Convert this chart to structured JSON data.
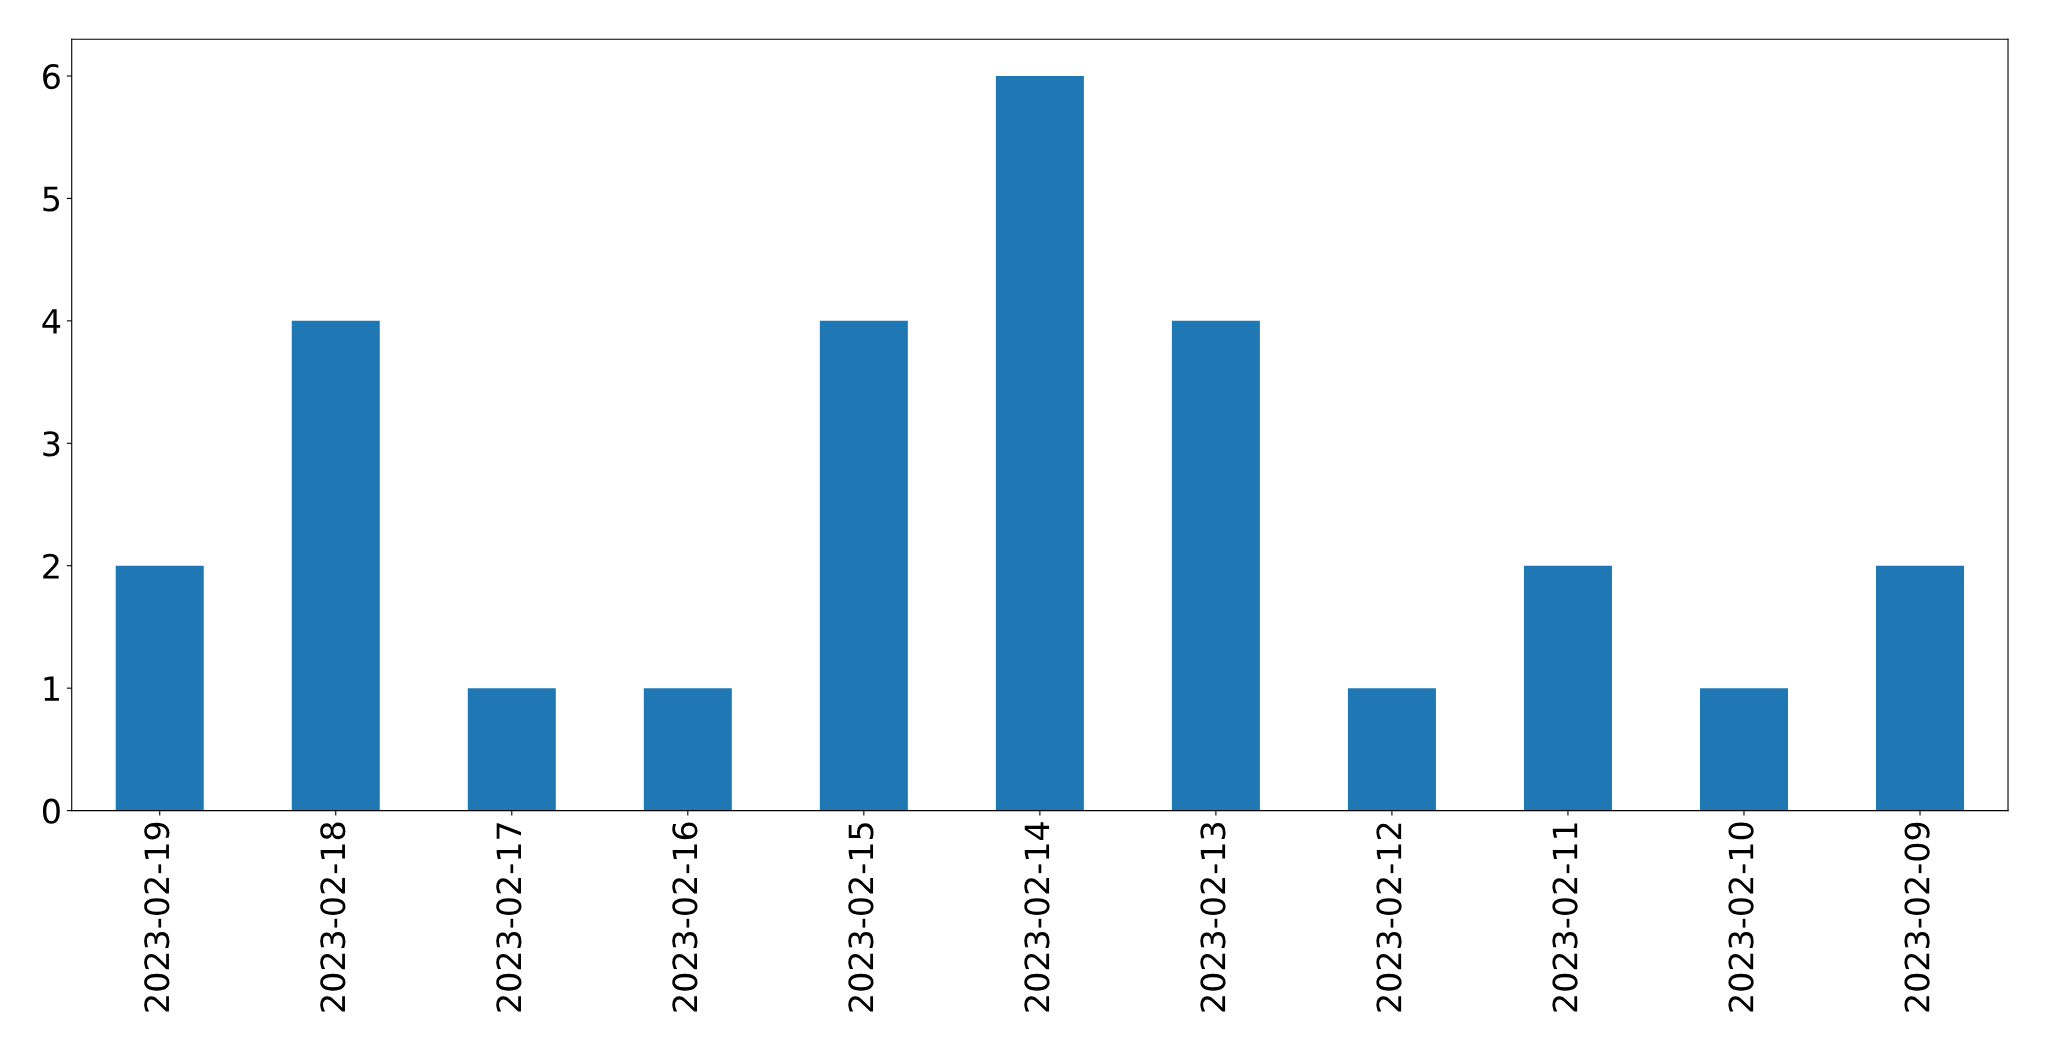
{
  "chart_data": {
    "type": "bar",
    "categories": [
      "2023-02-19",
      "2023-02-18",
      "2023-02-17",
      "2023-02-16",
      "2023-02-15",
      "2023-02-14",
      "2023-02-13",
      "2023-02-12",
      "2023-02-11",
      "2023-02-10",
      "2023-02-09"
    ],
    "values": [
      2,
      4,
      1,
      1,
      4,
      6,
      4,
      1,
      2,
      1,
      2
    ],
    "color": "#1f77b4",
    "ylim": [
      0,
      6.3
    ],
    "yticks": [
      0,
      1,
      2,
      3,
      4,
      5,
      6
    ],
    "grid": false
  }
}
